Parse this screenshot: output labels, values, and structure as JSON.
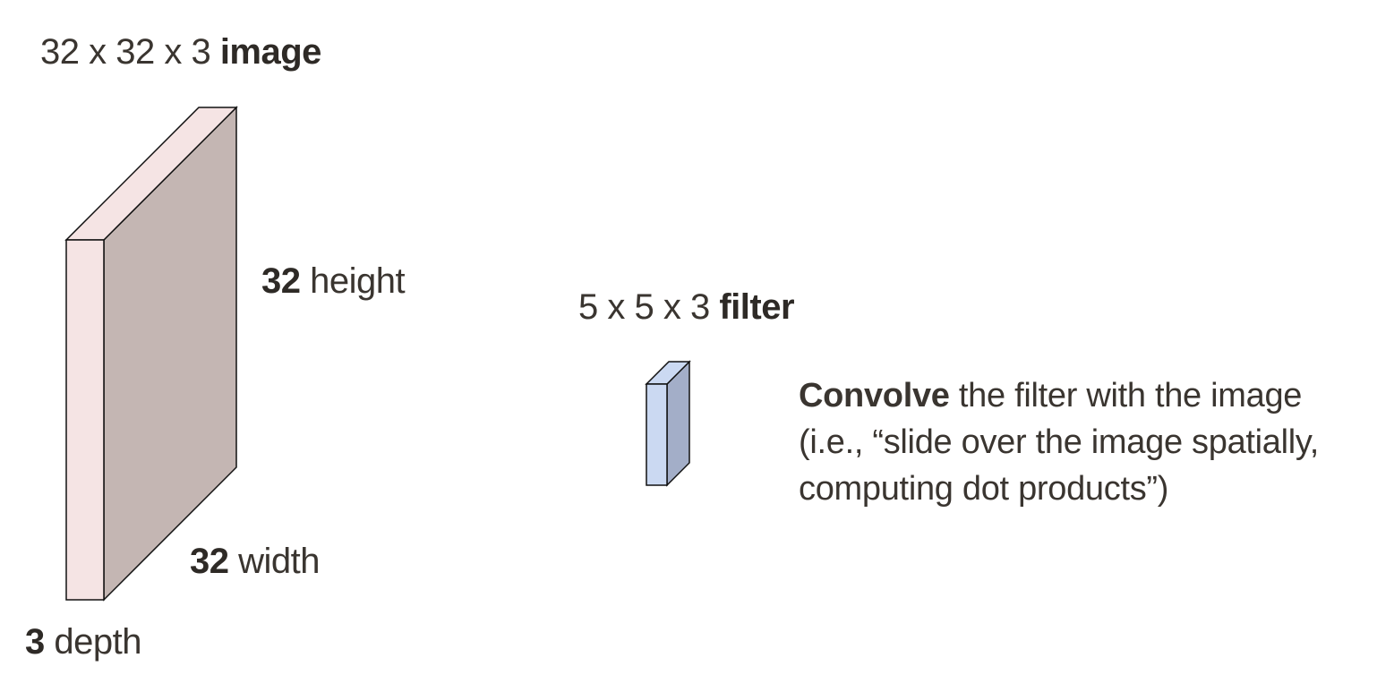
{
  "image_block": {
    "title": {
      "dims": "32 x 32 x 3",
      "word": "image"
    },
    "height": {
      "value": "32",
      "word": "height"
    },
    "width": {
      "value": "32",
      "word": "width"
    },
    "depth": {
      "value": "3",
      "word": "depth"
    },
    "colors": {
      "front": "#f5e4e4",
      "side": "#c4b6b3",
      "stroke": "#111111"
    }
  },
  "filter_block": {
    "title": {
      "dims": "5 x 5 x 3",
      "word": "filter"
    },
    "colors": {
      "front": "#cbd9f2",
      "side": "#a3aec8",
      "stroke": "#111111"
    }
  },
  "caption": {
    "bold": "Convolve",
    "line1_rest": " the filter with the image",
    "line2": "(i.e., “slide over the image spatially,",
    "line3": "computing dot products”)"
  }
}
